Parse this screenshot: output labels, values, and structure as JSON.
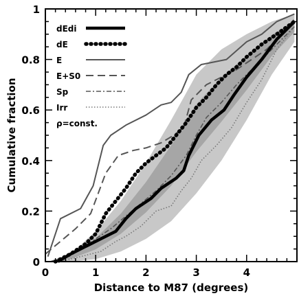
{
  "chart_data": {
    "type": "line",
    "xlabel": "Distance to M87 (degrees)",
    "ylabel": "Cumulative fraction",
    "xlim": [
      0,
      5
    ],
    "ylim": [
      0,
      1
    ],
    "xticks": [
      0,
      1,
      2,
      3,
      4
    ],
    "yticks": [
      0,
      0.2,
      0.4,
      0.6,
      0.8,
      1
    ],
    "xtick_labels": [
      "0",
      "1",
      "2",
      "3",
      "4"
    ],
    "ytick_labels": [
      "0",
      "0.2",
      "0.4",
      "0.6",
      "0.8",
      "1"
    ],
    "grid": false,
    "legend_position": "top-left",
    "band": {
      "name": "ρ=const.",
      "x": [
        0.1,
        0.5,
        1.0,
        1.5,
        2.0,
        2.5,
        3.0,
        3.5,
        4.0,
        4.5,
        4.95
      ],
      "lower": [
        0.0,
        0.0,
        0.01,
        0.04,
        0.09,
        0.16,
        0.27,
        0.4,
        0.56,
        0.74,
        0.87
      ],
      "upper": [
        0.0,
        0.03,
        0.12,
        0.24,
        0.39,
        0.56,
        0.74,
        0.84,
        0.9,
        0.95,
        0.98
      ],
      "color": "#c8c8c8"
    },
    "series": [
      {
        "name": "dEdi",
        "style": "thick-solid",
        "color": "#000000",
        "x": [
          0.25,
          0.5,
          0.8,
          1.1,
          1.4,
          1.6,
          1.8,
          2.1,
          2.3,
          2.6,
          2.75,
          2.85,
          3.05,
          3.3,
          3.55,
          3.75,
          4.0,
          4.3,
          4.6,
          4.95
        ],
        "y": [
          0.0,
          0.03,
          0.06,
          0.09,
          0.12,
          0.17,
          0.21,
          0.25,
          0.29,
          0.33,
          0.36,
          0.42,
          0.5,
          0.56,
          0.6,
          0.66,
          0.73,
          0.8,
          0.88,
          0.95
        ]
      },
      {
        "name": "dE",
        "style": "thick-dotted",
        "color": "#000000",
        "x": [
          0.2,
          0.5,
          0.8,
          1.0,
          1.2,
          1.4,
          1.6,
          1.8,
          2.0,
          2.2,
          2.4,
          2.6,
          2.8,
          3.0,
          3.2,
          3.4,
          3.6,
          3.8,
          4.0,
          4.3,
          4.6,
          4.95
        ],
        "y": [
          0.0,
          0.03,
          0.07,
          0.11,
          0.19,
          0.24,
          0.29,
          0.35,
          0.39,
          0.42,
          0.45,
          0.5,
          0.55,
          0.61,
          0.65,
          0.7,
          0.74,
          0.77,
          0.81,
          0.86,
          0.9,
          0.95
        ]
      },
      {
        "name": "E",
        "style": "solid",
        "color": "#555555",
        "x": [
          0.05,
          0.3,
          0.7,
          0.95,
          1.15,
          1.3,
          1.6,
          2.0,
          2.3,
          2.5,
          2.7,
          2.85,
          3.1,
          3.6,
          4.0,
          4.3,
          4.6,
          4.95
        ],
        "y": [
          0.02,
          0.17,
          0.21,
          0.3,
          0.46,
          0.5,
          0.54,
          0.58,
          0.62,
          0.63,
          0.67,
          0.74,
          0.78,
          0.8,
          0.87,
          0.9,
          0.95,
          0.98
        ]
      },
      {
        "name": "E+S0",
        "style": "dashed",
        "color": "#555555",
        "x": [
          0.0,
          0.3,
          0.6,
          0.9,
          1.2,
          1.45,
          1.75,
          2.0,
          2.3,
          2.55,
          2.75,
          2.9,
          3.2,
          3.5,
          3.8,
          4.1,
          4.4,
          4.7,
          4.95
        ],
        "y": [
          0.03,
          0.08,
          0.13,
          0.19,
          0.35,
          0.42,
          0.44,
          0.45,
          0.47,
          0.5,
          0.53,
          0.64,
          0.7,
          0.73,
          0.76,
          0.8,
          0.84,
          0.9,
          0.96
        ]
      },
      {
        "name": "Sp",
        "style": "dashdot",
        "color": "#555555",
        "x": [
          0.1,
          0.4,
          0.7,
          1.0,
          1.3,
          1.6,
          1.9,
          2.2,
          2.5,
          2.8,
          3.0,
          3.2,
          3.5,
          3.8,
          4.1,
          4.4,
          4.7,
          4.95
        ],
        "y": [
          0.0,
          0.02,
          0.05,
          0.09,
          0.13,
          0.18,
          0.23,
          0.28,
          0.34,
          0.42,
          0.5,
          0.57,
          0.63,
          0.7,
          0.76,
          0.82,
          0.88,
          0.93
        ]
      },
      {
        "name": "Irr",
        "style": "dotted",
        "color": "#777777",
        "x": [
          0.3,
          0.7,
          1.1,
          1.4,
          1.6,
          1.9,
          2.2,
          2.5,
          2.7,
          2.9,
          3.1,
          3.4,
          3.7,
          4.0,
          4.3,
          4.6,
          4.95
        ],
        "y": [
          0.0,
          0.02,
          0.04,
          0.08,
          0.1,
          0.14,
          0.2,
          0.22,
          0.28,
          0.33,
          0.4,
          0.46,
          0.53,
          0.63,
          0.72,
          0.84,
          0.93
        ]
      }
    ]
  }
}
